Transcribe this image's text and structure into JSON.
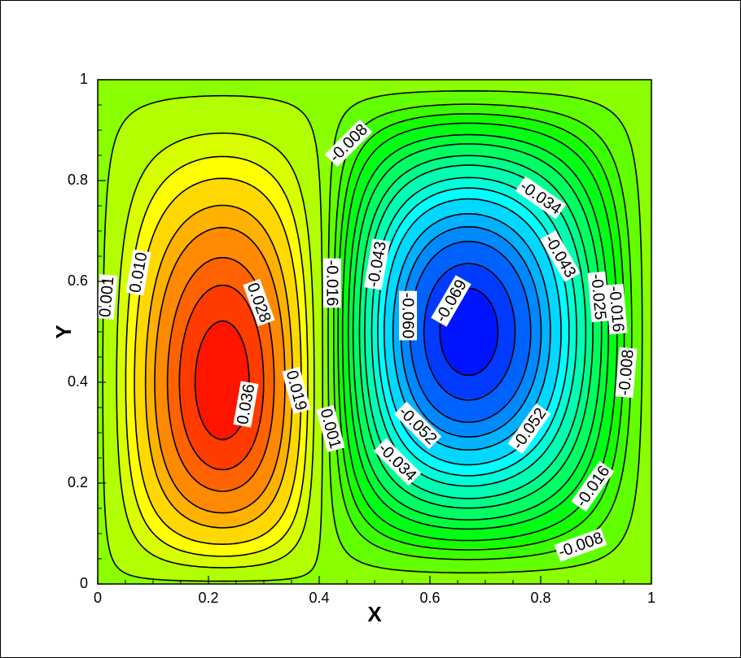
{
  "chart_data": {
    "type": "contour",
    "x_label": "X",
    "y_label": "Y",
    "xlim": [
      0,
      1
    ],
    "ylim": [
      0,
      1
    ],
    "xticks": [
      0,
      0.2,
      0.4,
      0.6,
      0.8,
      1
    ],
    "yticks": [
      0,
      0.2,
      0.4,
      0.6,
      0.8,
      1
    ],
    "levels": [
      -0.069,
      -0.065,
      -0.06,
      -0.056,
      -0.052,
      -0.047,
      -0.043,
      -0.039,
      -0.034,
      -0.03,
      -0.025,
      -0.021,
      -0.016,
      -0.012,
      -0.008,
      -0.003,
      0.001,
      0.006,
      0.01,
      0.014,
      0.019,
      0.023,
      0.028,
      0.032,
      0.036
    ],
    "contour_labels": [
      {
        "value": 0.001,
        "label": "0.001"
      },
      {
        "value": 0.01,
        "label": "0.010"
      },
      {
        "value": 0.028,
        "label": "0.028"
      },
      {
        "value": 0.036,
        "label": "0.036"
      },
      {
        "value": 0.019,
        "label": "0.019"
      },
      {
        "value": 0.001,
        "label": "0.001"
      },
      {
        "value": -0.016,
        "label": "-0.016"
      },
      {
        "value": -0.008,
        "label": "-0.008"
      },
      {
        "value": -0.043,
        "label": "-0.043"
      },
      {
        "value": -0.06,
        "label": "-0.060"
      },
      {
        "value": -0.069,
        "label": "-0.069"
      },
      {
        "value": -0.052,
        "label": "-0.052"
      },
      {
        "value": -0.034,
        "label": "-0.034"
      },
      {
        "value": -0.034,
        "label": "-0.034"
      },
      {
        "value": -0.043,
        "label": "-0.043"
      },
      {
        "value": -0.052,
        "label": "-0.052"
      },
      {
        "value": -0.025,
        "label": "-0.025"
      },
      {
        "value": -0.016,
        "label": "-0.016"
      },
      {
        "value": -0.008,
        "label": "-0.008"
      },
      {
        "value": -0.016,
        "label": "-0.016"
      },
      {
        "value": -0.008,
        "label": "-0.008"
      }
    ]
  }
}
